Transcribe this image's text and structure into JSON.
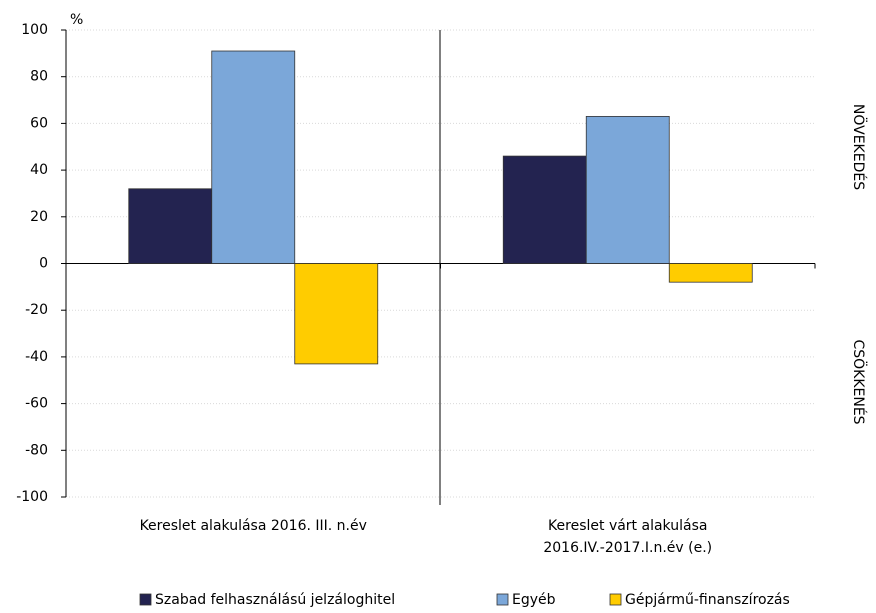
{
  "chart_data": {
    "type": "bar",
    "y_unit": "%",
    "right_labels": [
      "NÖVEKEDÉS",
      "CSÖKKENÉS"
    ],
    "categories": [
      "Kereslet alakulása 2016. III. n.év",
      "Kereslet várt alakulása 2016.IV.-2017.I.n.év (e.)"
    ],
    "series": [
      {
        "name": "Szabad felhasználású jelzáloghitel",
        "color": "#232350",
        "values": [
          32,
          46
        ]
      },
      {
        "name": "Egyéb",
        "color": "#7ba7d9",
        "values": [
          91,
          63
        ]
      },
      {
        "name": "Gépjármű-finanszírozás",
        "color": "#ffcc00",
        "values": [
          -43,
          -8
        ]
      }
    ],
    "ylim": [
      -100,
      100
    ],
    "yticks": [
      -100,
      -80,
      -60,
      -40,
      -20,
      0,
      20,
      40,
      60,
      80,
      100
    ],
    "grid": true
  }
}
